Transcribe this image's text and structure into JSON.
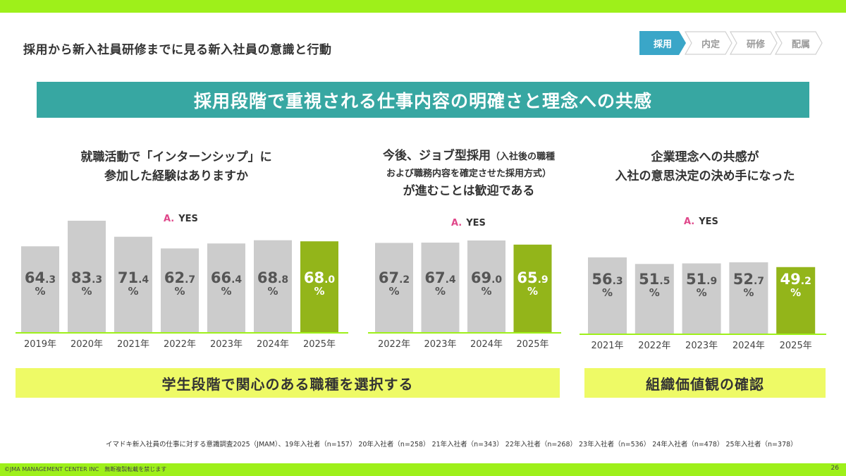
{
  "page_title": "採用から新入社員研修までに見る新入社員の意識と行動",
  "steps": [
    "採用",
    "内定",
    "研修",
    "配属"
  ],
  "banner": "採用段階で重視される仕事内容の明確さと理念への共感",
  "panels": [
    {
      "title_lines": [
        "就職活動で「インターンシップ」に",
        "参加した経験はありますか"
      ],
      "answer_prefix": "A.",
      "answer": "YES"
    },
    {
      "title_line1_main": "今後、ジョブ型採用",
      "title_line1_small": "（入社後の職種",
      "title_line2_small": "および職務内容を確定させた採用方式）",
      "title_line3": "が進むことは歓迎である",
      "answer_prefix": "A.",
      "answer": "YES"
    },
    {
      "title_lines": [
        "企業理念への共感が",
        "入社の意思決定の決め手になった"
      ],
      "answer_prefix": "A.",
      "answer": "YES"
    }
  ],
  "chart_data": [
    {
      "type": "bar",
      "title": "就職活動で「インターンシップ」に参加した経験はありますか",
      "categories": [
        "2019年",
        "2020年",
        "2021年",
        "2022年",
        "2023年",
        "2024年",
        "2025年"
      ],
      "values": [
        64.3,
        83.3,
        71.4,
        62.7,
        66.4,
        68.8,
        68.0
      ],
      "value_labels": [
        "64.3",
        "83.3",
        "71.4",
        "62.7",
        "66.4",
        "68.8",
        "68.0"
      ],
      "unit": "%",
      "highlight_index": 6,
      "ylim": [
        0,
        83.3
      ]
    },
    {
      "type": "bar",
      "title": "今後、ジョブ型採用が進むことは歓迎である",
      "categories": [
        "2022年",
        "2023年",
        "2024年",
        "2025年"
      ],
      "values": [
        67.2,
        67.4,
        69.0,
        65.9
      ],
      "value_labels": [
        "67.2",
        "67.4",
        "69.0",
        "65.9"
      ],
      "unit": "%",
      "highlight_index": 3,
      "ylim": [
        0,
        69.0
      ]
    },
    {
      "type": "bar",
      "title": "企業理念への共感が入社の意思決定の決め手になった",
      "categories": [
        "2021年",
        "2022年",
        "2023年",
        "2024年",
        "2025年"
      ],
      "values": [
        56.3,
        51.5,
        51.9,
        52.7,
        49.2
      ],
      "value_labels": [
        "56.3",
        "51.5",
        "51.9",
        "52.7",
        "49.2"
      ],
      "unit": "%",
      "highlight_index": 4,
      "ylim": [
        0,
        56.3
      ]
    }
  ],
  "summaries": [
    "学生段階で関心のある職種を選択する",
    "組織価値観の確認"
  ],
  "source": "イマドキ新入社員の仕事に対する意識調査2025（JMAM）、19年入社者（n=157） 20年入社者（n=258） 21年入社者（n=343） 22年入社者（n=268） 23年入社者（n=536） 24年入社者（n=478） 25年入社者（n=378）",
  "footer": "©JMA MANAGEMENT CENTER INC　無断複製転載を禁じます",
  "page_number": "26",
  "colors": {
    "bar": "#cccccc",
    "highlight": "#93b51a",
    "label": "#555555",
    "banner": "#37a7a2",
    "summary": "#eefa66",
    "accent": "#9ef01a"
  }
}
